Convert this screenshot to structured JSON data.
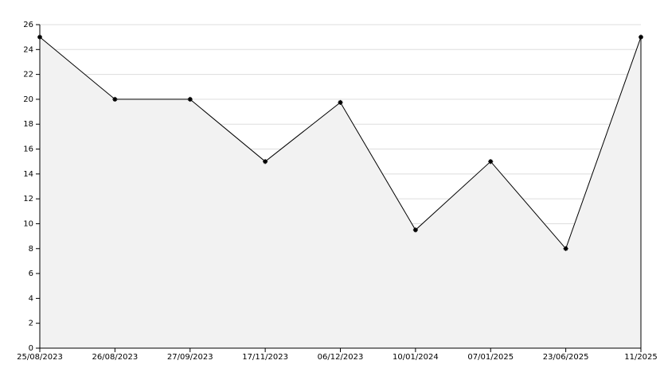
{
  "chart_data": {
    "type": "area-line",
    "categories": [
      "25/08/2023",
      "26/08/2023",
      "27/09/2023",
      "17/11/2023",
      "06/12/2023",
      "10/01/2024",
      "07/01/2025",
      "23/06/2025",
      "11/2025"
    ],
    "values": [
      25,
      20,
      20,
      15,
      19.75,
      9.5,
      15,
      8,
      25
    ],
    "color": "#000000",
    "fill": "#f2f2f2",
    "ylim": [
      0,
      26
    ],
    "yticks": [
      0,
      2,
      4,
      6,
      8,
      10,
      12,
      14,
      16,
      18,
      20,
      22,
      24,
      26
    ],
    "grid": true
  }
}
